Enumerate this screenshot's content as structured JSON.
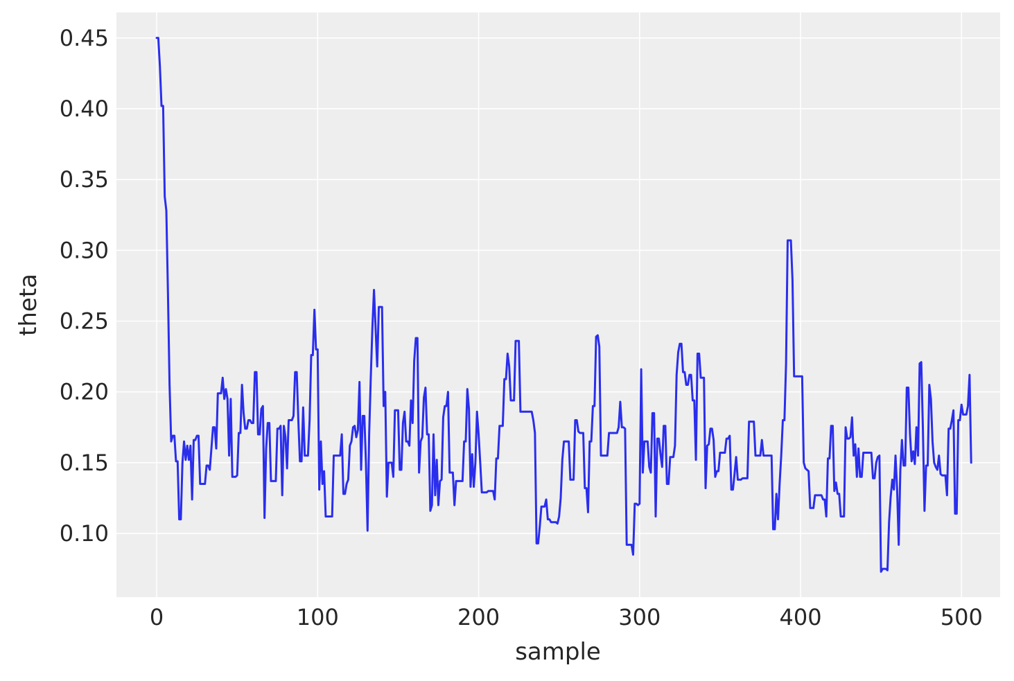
{
  "chart_data": {
    "type": "line",
    "title": "",
    "xlabel": "sample",
    "ylabel": "theta",
    "xlim": [
      -25,
      524
    ],
    "ylim": [
      0.055,
      0.468
    ],
    "grid": true,
    "legend": "none",
    "colors": {
      "line": "#2a2eec",
      "plot_bg": "#eeeeee",
      "grid": "#ffffff",
      "text": "#262626"
    },
    "x_ticks": [
      0,
      100,
      200,
      300,
      400,
      500
    ],
    "x_tick_labels": [
      "0",
      "100",
      "200",
      "300",
      "400",
      "500"
    ],
    "y_ticks": [
      0.1,
      0.15,
      0.2,
      0.25,
      0.3,
      0.35,
      0.4,
      0.45
    ],
    "y_tick_labels": [
      "0.10",
      "0.15",
      "0.20",
      "0.25",
      "0.30",
      "0.35",
      "0.40",
      "0.45"
    ],
    "series": [
      {
        "values": [
          0.45,
          0.45,
          0.43,
          0.402,
          0.402,
          0.338,
          0.328,
          0.27,
          0.205,
          0.165,
          0.169,
          0.169,
          0.151,
          0.151,
          0.11,
          0.11,
          0.15,
          0.165,
          0.152,
          0.162,
          0.152,
          0.162,
          0.124,
          0.166,
          0.166,
          0.169,
          0.169,
          0.135,
          0.135,
          0.135,
          0.135,
          0.148,
          0.148,
          0.145,
          0.16,
          0.175,
          0.175,
          0.16,
          0.199,
          0.199,
          0.199,
          0.21,
          0.195,
          0.202,
          0.195,
          0.155,
          0.195,
          0.14,
          0.14,
          0.14,
          0.141,
          0.171,
          0.171,
          0.205,
          0.185,
          0.174,
          0.174,
          0.18,
          0.18,
          0.178,
          0.178,
          0.214,
          0.214,
          0.17,
          0.17,
          0.188,
          0.19,
          0.111,
          0.16,
          0.178,
          0.178,
          0.137,
          0.137,
          0.137,
          0.137,
          0.174,
          0.174,
          0.176,
          0.127,
          0.176,
          0.168,
          0.146,
          0.18,
          0.18,
          0.18,
          0.183,
          0.214,
          0.214,
          0.18,
          0.151,
          0.151,
          0.189,
          0.155,
          0.155,
          0.155,
          0.18,
          0.226,
          0.226,
          0.258,
          0.23,
          0.23,
          0.131,
          0.165,
          0.135,
          0.144,
          0.112,
          0.112,
          0.112,
          0.112,
          0.112,
          0.155,
          0.155,
          0.155,
          0.155,
          0.155,
          0.17,
          0.128,
          0.128,
          0.135,
          0.138,
          0.162,
          0.165,
          0.175,
          0.176,
          0.168,
          0.173,
          0.207,
          0.145,
          0.183,
          0.183,
          0.15,
          0.102,
          0.17,
          0.21,
          0.245,
          0.272,
          0.245,
          0.218,
          0.26,
          0.26,
          0.26,
          0.19,
          0.2,
          0.126,
          0.15,
          0.15,
          0.15,
          0.14,
          0.187,
          0.187,
          0.187,
          0.145,
          0.145,
          0.178,
          0.186,
          0.165,
          0.165,
          0.162,
          0.194,
          0.178,
          0.222,
          0.238,
          0.238,
          0.143,
          0.165,
          0.168,
          0.196,
          0.203,
          0.17,
          0.17,
          0.116,
          0.12,
          0.17,
          0.127,
          0.152,
          0.12,
          0.137,
          0.138,
          0.182,
          0.19,
          0.19,
          0.2,
          0.143,
          0.143,
          0.143,
          0.12,
          0.137,
          0.137,
          0.137,
          0.137,
          0.137,
          0.165,
          0.165,
          0.202,
          0.188,
          0.133,
          0.156,
          0.133,
          0.15,
          0.186,
          0.17,
          0.15,
          0.129,
          0.129,
          0.129,
          0.129,
          0.13,
          0.13,
          0.13,
          0.13,
          0.124,
          0.153,
          0.153,
          0.176,
          0.176,
          0.176,
          0.209,
          0.209,
          0.227,
          0.218,
          0.194,
          0.194,
          0.194,
          0.236,
          0.236,
          0.236,
          0.186,
          0.186,
          0.186,
          0.186,
          0.186,
          0.186,
          0.186,
          0.186,
          0.18,
          0.171,
          0.093,
          0.093,
          0.105,
          0.119,
          0.119,
          0.119,
          0.124,
          0.11,
          0.11,
          0.108,
          0.108,
          0.108,
          0.108,
          0.107,
          0.112,
          0.125,
          0.152,
          0.165,
          0.165,
          0.165,
          0.165,
          0.138,
          0.138,
          0.138,
          0.18,
          0.18,
          0.172,
          0.171,
          0.171,
          0.171,
          0.132,
          0.132,
          0.115,
          0.165,
          0.165,
          0.19,
          0.19,
          0.239,
          0.24,
          0.232,
          0.155,
          0.155,
          0.155,
          0.155,
          0.155,
          0.171,
          0.171,
          0.171,
          0.171,
          0.171,
          0.171,
          0.175,
          0.193,
          0.175,
          0.175,
          0.174,
          0.092,
          0.092,
          0.092,
          0.092,
          0.085,
          0.121,
          0.121,
          0.12,
          0.121,
          0.216,
          0.143,
          0.165,
          0.165,
          0.165,
          0.147,
          0.143,
          0.185,
          0.185,
          0.112,
          0.167,
          0.167,
          0.156,
          0.147,
          0.176,
          0.176,
          0.135,
          0.135,
          0.154,
          0.154,
          0.154,
          0.162,
          0.212,
          0.228,
          0.234,
          0.234,
          0.214,
          0.214,
          0.205,
          0.205,
          0.212,
          0.212,
          0.194,
          0.194,
          0.152,
          0.227,
          0.227,
          0.21,
          0.21,
          0.21,
          0.132,
          0.162,
          0.163,
          0.174,
          0.174,
          0.166,
          0.14,
          0.144,
          0.144,
          0.157,
          0.157,
          0.157,
          0.157,
          0.167,
          0.167,
          0.169,
          0.131,
          0.131,
          0.142,
          0.154,
          0.138,
          0.138,
          0.138,
          0.139,
          0.139,
          0.139,
          0.139,
          0.179,
          0.179,
          0.179,
          0.179,
          0.155,
          0.155,
          0.155,
          0.155,
          0.166,
          0.155,
          0.155,
          0.155,
          0.155,
          0.155,
          0.155,
          0.103,
          0.103,
          0.128,
          0.11,
          0.135,
          0.155,
          0.18,
          0.18,
          0.22,
          0.307,
          0.307,
          0.307,
          0.279,
          0.211,
          0.211,
          0.211,
          0.211,
          0.211,
          0.211,
          0.15,
          0.146,
          0.145,
          0.144,
          0.118,
          0.118,
          0.118,
          0.127,
          0.127,
          0.127,
          0.127,
          0.127,
          0.124,
          0.124,
          0.112,
          0.153,
          0.153,
          0.176,
          0.176,
          0.13,
          0.136,
          0.128,
          0.128,
          0.112,
          0.112,
          0.112,
          0.175,
          0.167,
          0.167,
          0.168,
          0.182,
          0.155,
          0.163,
          0.14,
          0.16,
          0.14,
          0.14,
          0.157,
          0.157,
          0.157,
          0.157,
          0.157,
          0.157,
          0.139,
          0.139,
          0.15,
          0.154,
          0.155,
          0.073,
          0.075,
          0.075,
          0.075,
          0.074,
          0.108,
          0.126,
          0.138,
          0.131,
          0.155,
          0.131,
          0.092,
          0.145,
          0.166,
          0.148,
          0.148,
          0.203,
          0.203,
          0.17,
          0.151,
          0.158,
          0.149,
          0.175,
          0.155,
          0.22,
          0.221,
          0.175,
          0.116,
          0.148,
          0.148,
          0.205,
          0.195,
          0.165,
          0.15,
          0.147,
          0.145,
          0.155,
          0.142,
          0.141,
          0.141,
          0.141,
          0.127,
          0.174,
          0.174,
          0.18,
          0.187,
          0.114,
          0.114,
          0.18,
          0.18,
          0.191,
          0.184,
          0.184,
          0.184,
          0.19,
          0.212,
          0.15
        ]
      }
    ]
  }
}
